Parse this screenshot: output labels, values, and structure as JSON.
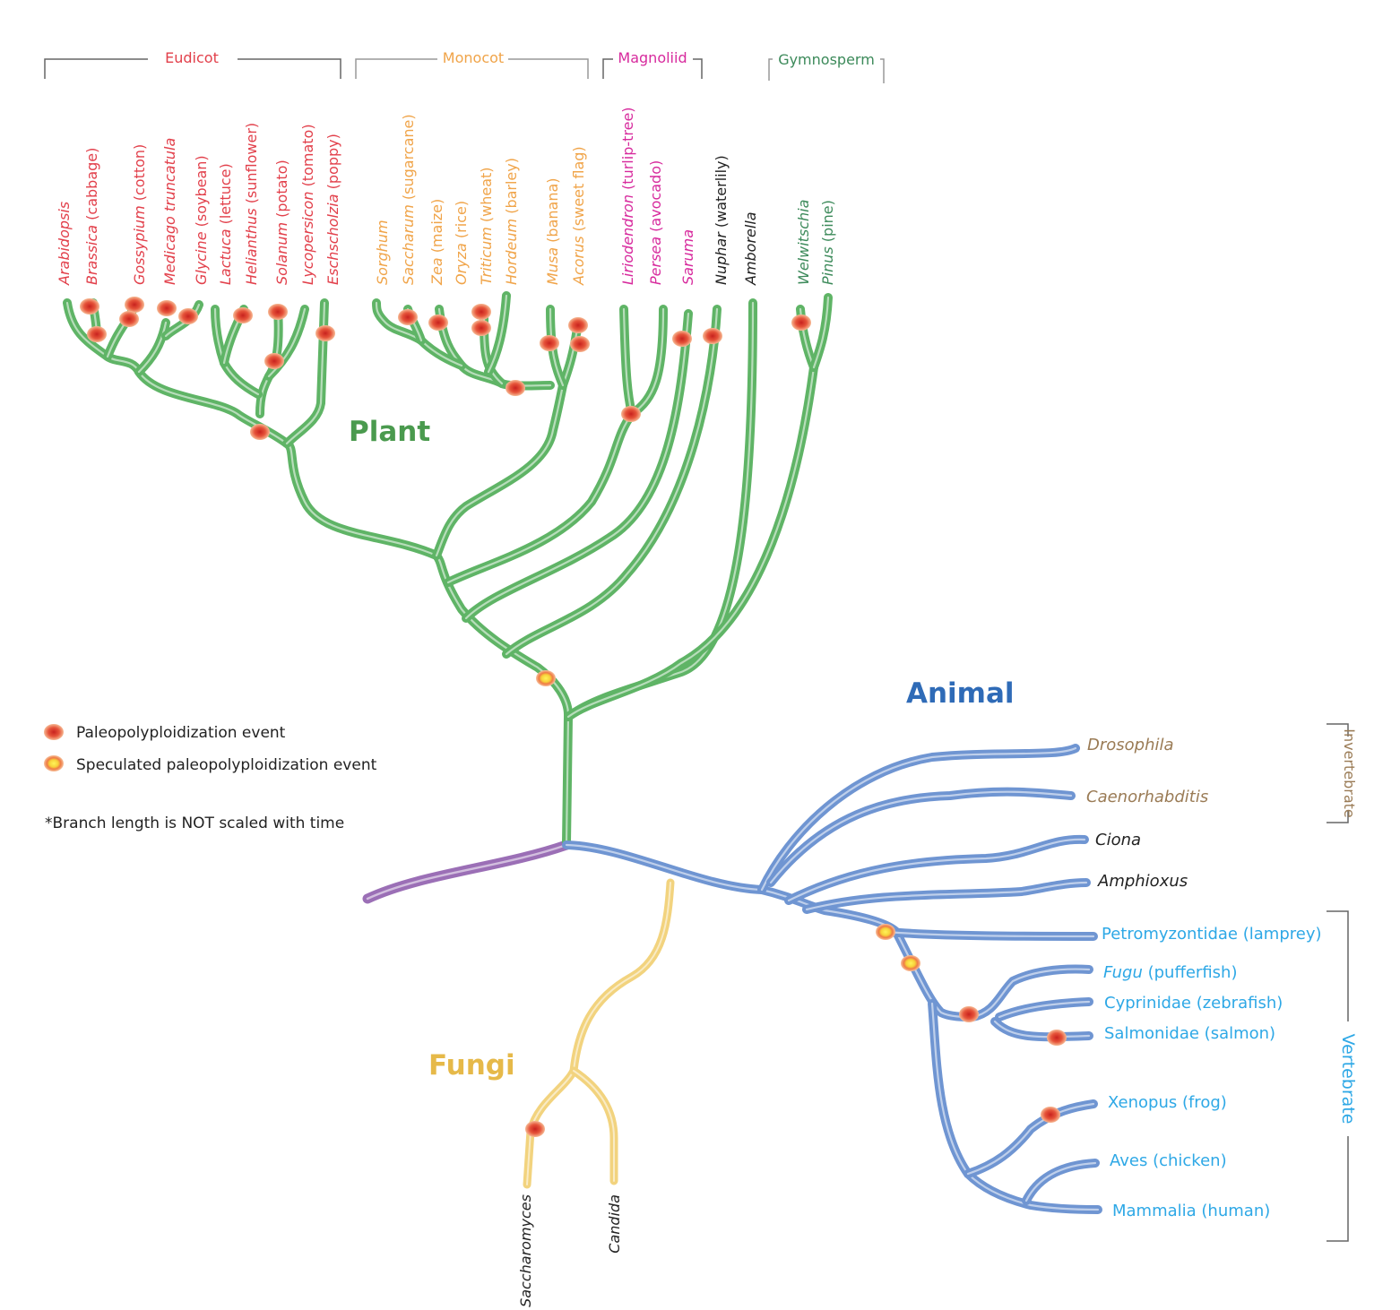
{
  "colors": {
    "plant": "#5fb466",
    "animal": "#6f95d2",
    "fungi": "#f2d37e",
    "root": "#9b6fb6",
    "eudicot": "#e2404b",
    "monocot": "#f0a449",
    "magnoliid": "#d72a9d",
    "gymnosperm": "#3c8a5a",
    "black": "#222222",
    "invertebrate": "#9a7b55",
    "vertebrate": "#2ea8e6",
    "plant_title": "#4a9a4e",
    "animal_title": "#2f6bb7",
    "fungi_title": "#e6b949"
  },
  "titles": {
    "plant": "Plant",
    "animal": "Animal",
    "fungi": "Fungi"
  },
  "legend": {
    "paleo": "Paleopolyploidization event",
    "speculated": "Speculated paleopolyploidization event",
    "note": "*Branch length is NOT scaled with time"
  },
  "groups": {
    "eudicot": "Eudicot",
    "monocot": "Monocot",
    "magnoliid": "Magnoliid",
    "gymnosperm": "Gymnosperm",
    "invertebrate": "Invertebrate",
    "vertebrate": "Vertebrate"
  },
  "plants": [
    {
      "italic": "Arabidopsis",
      "common": ""
    },
    {
      "italic": "Brassica",
      "common": " (cabbage)"
    },
    {
      "italic": "Gossypium",
      "common": " (cotton)"
    },
    {
      "italic": "Medicago truncatula",
      "common": ""
    },
    {
      "italic": "Glycine",
      "common": " (soybean)"
    },
    {
      "italic": "Lactuca",
      "common": " (lettuce)"
    },
    {
      "italic": "Helianthus",
      "common": " (sunflower)"
    },
    {
      "italic": "Solanum",
      "common": " (potato)"
    },
    {
      "italic": "Lycopersicon",
      "common": " (tomato)"
    },
    {
      "italic": "Eschscholzia",
      "common": " (poppy)"
    },
    {
      "italic": "Sorghum",
      "common": ""
    },
    {
      "italic": "Saccharum",
      "common": " (sugarcane)"
    },
    {
      "italic": "Zea",
      "common": " (maize)"
    },
    {
      "italic": "Oryza",
      "common": " (rice)"
    },
    {
      "italic": "Triticum",
      "common": " (wheat)"
    },
    {
      "italic": "Hordeum",
      "common": " (barley)"
    },
    {
      "italic": "Musa",
      "common": " (banana)"
    },
    {
      "italic": "Acorus",
      "common": " (sweet flag)"
    },
    {
      "italic": "Liriodendron",
      "common": " (turlip-tree)"
    },
    {
      "italic": "Persea",
      "common": " (avocado)"
    },
    {
      "italic": "Saruma",
      "common": ""
    },
    {
      "italic": "Nuphar",
      "common": " (waterlily)"
    },
    {
      "italic": "Amborella",
      "common": ""
    },
    {
      "italic": "Welwitschia",
      "common": ""
    },
    {
      "italic": "Pinus",
      "common": " (pine)"
    }
  ],
  "animals": [
    {
      "italic": "Drosophila",
      "common": ""
    },
    {
      "italic": "Caenorhabditis",
      "common": ""
    },
    {
      "italic": "Ciona",
      "common": ""
    },
    {
      "italic": "Amphioxus",
      "common": ""
    },
    {
      "italic": "",
      "common": "Petromyzontidae (lamprey)"
    },
    {
      "italic": "Fugu",
      "common": " (pufferfish)"
    },
    {
      "italic": "",
      "common": "Cyprinidae (zebrafish)"
    },
    {
      "italic": "",
      "common": "Salmonidae (salmon)"
    },
    {
      "italic": "",
      "common": "Xenopus (frog)"
    },
    {
      "italic": "",
      "common": "Aves (chicken)"
    },
    {
      "italic": "",
      "common": "Mammalia (human)"
    }
  ],
  "fungi": [
    {
      "italic": "Saccharomyces",
      "common": ""
    },
    {
      "italic": "Candida",
      "common": ""
    }
  ]
}
